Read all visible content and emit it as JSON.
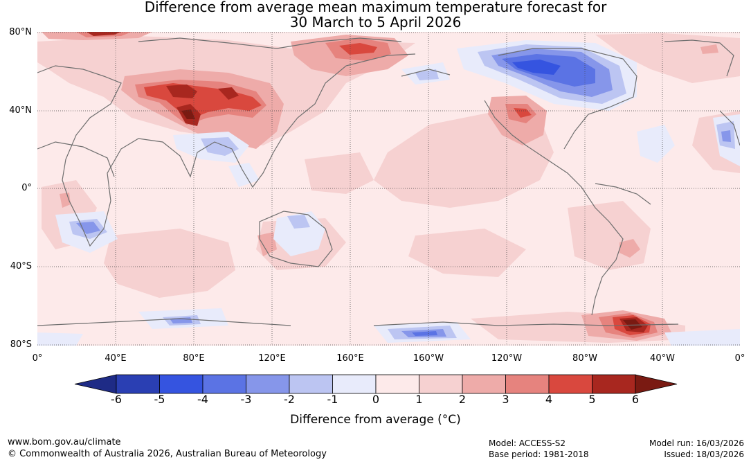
{
  "title_line1": "Difference from average mean maximum temperature forecast for",
  "title_line2": "30 March to 5 April 2026",
  "lat_labels": [
    "80°N",
    "40°N",
    "0°",
    "40°S",
    "80°S"
  ],
  "lon_labels": [
    "0°",
    "40°E",
    "80°E",
    "120°E",
    "160°E",
    "160°W",
    "120°W",
    "80°W",
    "40°W",
    "0°"
  ],
  "colorbar": {
    "ticks": [
      "-6",
      "-5",
      "-4",
      "-3",
      "-2",
      "-1",
      "0",
      "1",
      "2",
      "3",
      "4",
      "5",
      "6"
    ],
    "colors": [
      "#1e2b86",
      "#2a3fb3",
      "#3554e0",
      "#5b73e4",
      "#8696ea",
      "#bcc5f2",
      "#e8ebfb",
      "#fdeaea",
      "#f6d1d1",
      "#eeaba9",
      "#e6837e",
      "#d9483e",
      "#a8271f",
      "#7a1a12"
    ],
    "label": "Difference from average (°C)"
  },
  "footer": {
    "url": "www.bom.gov.au/climate",
    "copyright": "© Commonwealth of Australia 2026, Australian Bureau of Meteorology",
    "model": "Model: ACCESS-S2",
    "base_period": "Base period: 1981-2018",
    "model_run": "Model run: 16/03/2026",
    "issued": "Issued: 18/03/2026"
  }
}
